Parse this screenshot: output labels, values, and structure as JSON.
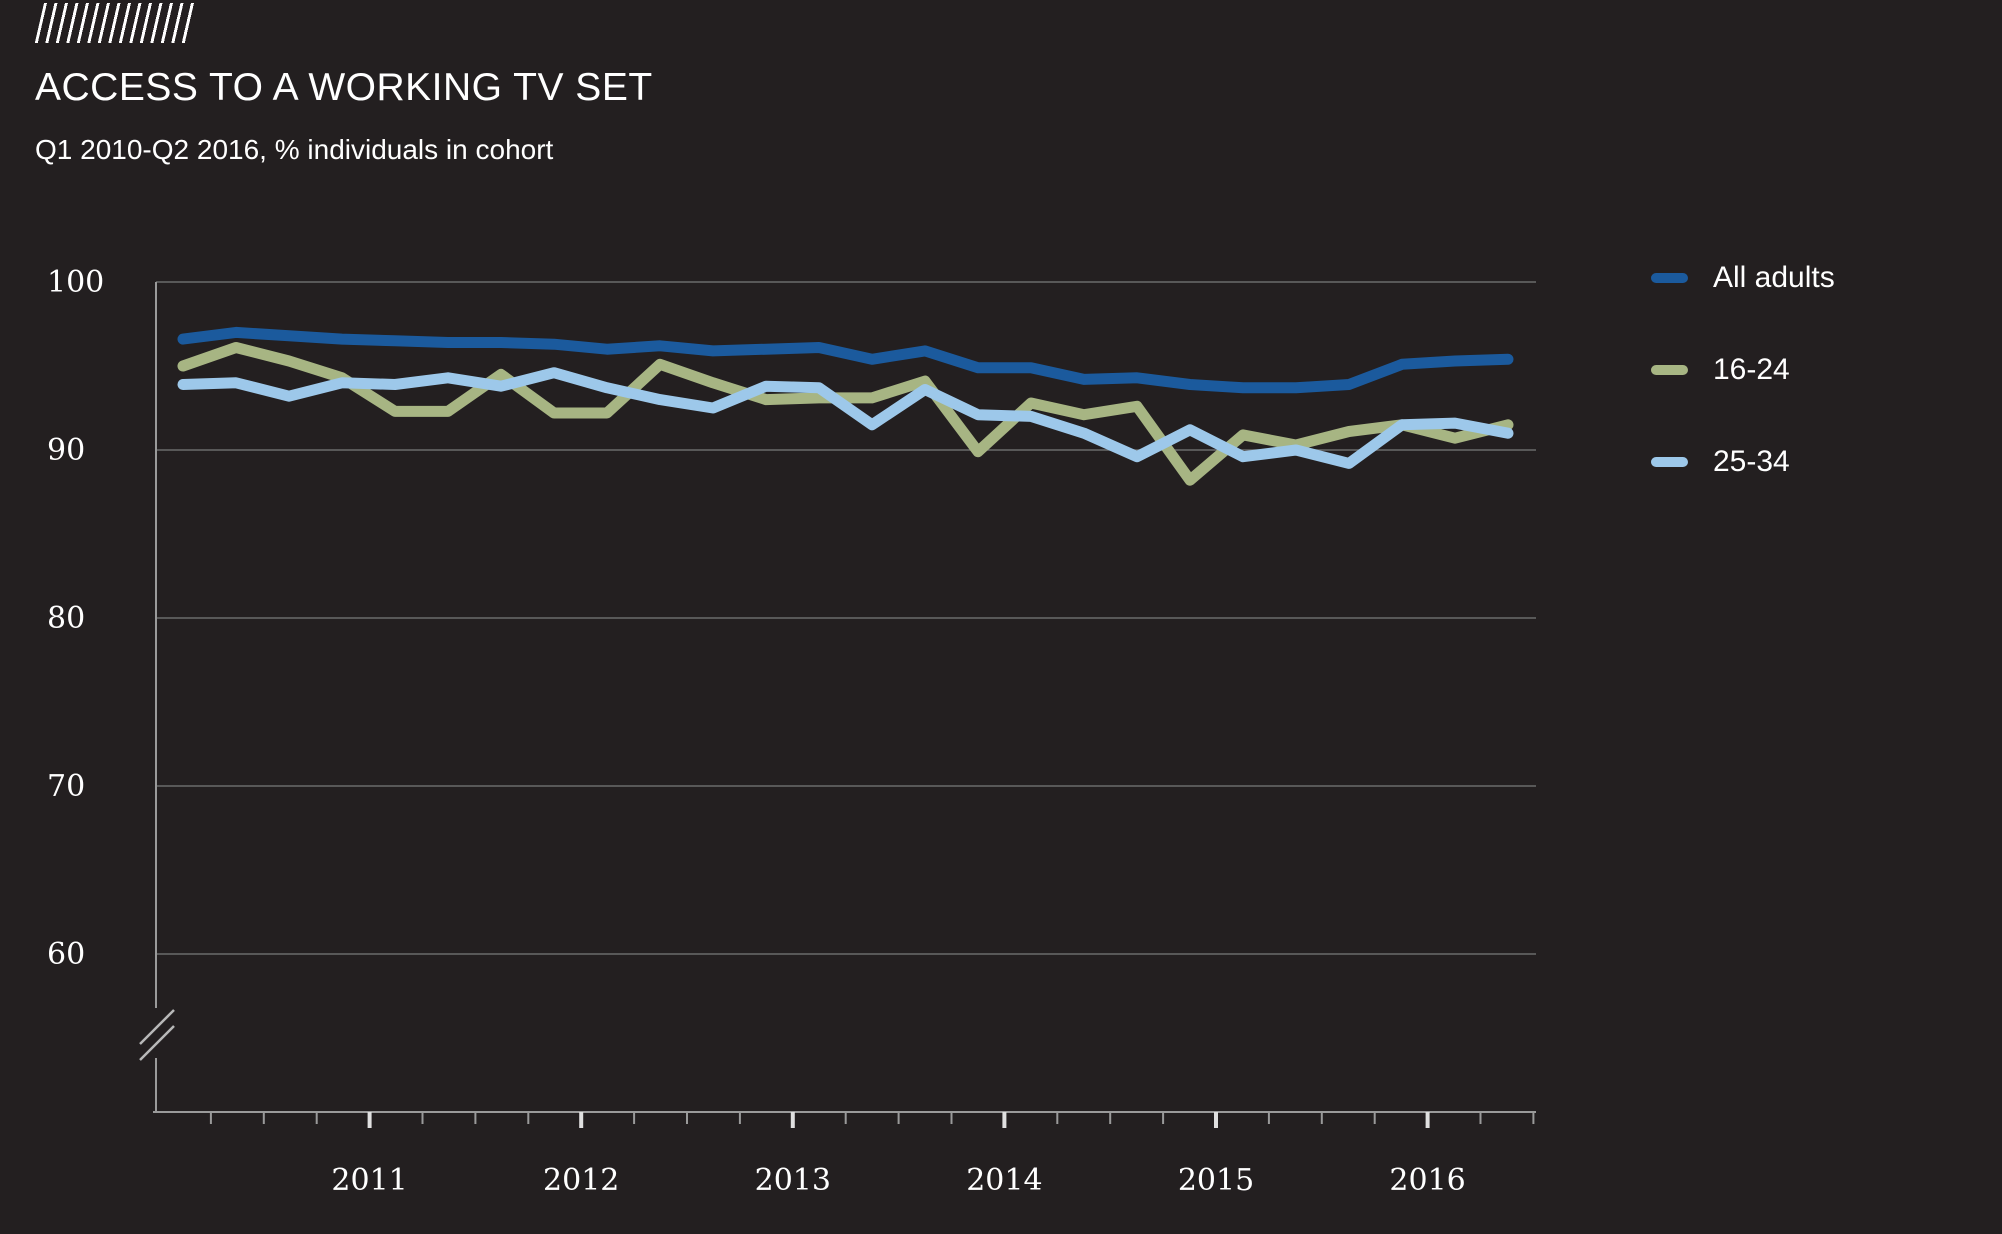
{
  "header": {
    "title": "ACCESS TO A WORKING TV SET",
    "subtitle": "Q1 2010-Q2 2016, % individuals in cohort",
    "logo": "hatch-stripes-logo"
  },
  "colors": {
    "background": "#231f20",
    "text": "#ffffff",
    "gridline": "#6b6b6b",
    "axis": "#9a9a9a",
    "year_tick": "#e0e0e0",
    "series_all_adults": "#1b5a9d",
    "series_16_24": "#a7b583",
    "series_25_34": "#9dc8ea"
  },
  "chart_data": {
    "type": "line",
    "title": "ACCESS TO A WORKING TV SET",
    "subtitle": "Q1 2010-Q2 2016, % individuals in cohort",
    "xlabel": "",
    "ylabel": "% individuals in cohort",
    "ylim": [
      60,
      100
    ],
    "y_ticks": [
      100,
      90,
      80,
      70,
      60
    ],
    "y_axis_break": true,
    "grid": "horizontal",
    "legend_position": "right",
    "x_tick_years": [
      "2011",
      "2012",
      "2013",
      "2014",
      "2015",
      "2016"
    ],
    "categories": [
      "Q1 2010",
      "Q2 2010",
      "Q3 2010",
      "Q4 2010",
      "Q1 2011",
      "Q2 2011",
      "Q3 2011",
      "Q4 2011",
      "Q1 2012",
      "Q2 2012",
      "Q3 2012",
      "Q4 2012",
      "Q1 2013",
      "Q2 2013",
      "Q3 2013",
      "Q4 2013",
      "Q1 2014",
      "Q2 2014",
      "Q3 2014",
      "Q4 2014",
      "Q1 2015",
      "Q2 2015",
      "Q3 2015",
      "Q4 2015",
      "Q1 2016",
      "Q2 2016"
    ],
    "series": [
      {
        "name": "All adults",
        "color": "#1b5a9d",
        "values": [
          96.6,
          97.0,
          96.8,
          96.6,
          96.5,
          96.4,
          96.4,
          96.3,
          96.0,
          96.2,
          95.9,
          96.0,
          96.1,
          95.4,
          95.9,
          94.9,
          94.9,
          94.2,
          94.3,
          93.9,
          93.7,
          93.7,
          93.9,
          95.1,
          95.3,
          95.4
        ]
      },
      {
        "name": "16-24",
        "color": "#a7b583",
        "values": [
          95.0,
          96.1,
          95.3,
          94.3,
          92.3,
          92.3,
          94.5,
          92.2,
          92.2,
          95.1,
          94.0,
          93.0,
          93.1,
          93.1,
          94.1,
          89.9,
          92.8,
          92.1,
          92.6,
          88.2,
          90.9,
          90.3,
          91.1,
          91.5,
          90.7,
          91.5
        ]
      },
      {
        "name": "25-34",
        "color": "#9dc8ea",
        "values": [
          93.9,
          94.0,
          93.2,
          94.0,
          93.9,
          94.3,
          93.8,
          94.6,
          93.7,
          93.0,
          92.5,
          93.8,
          93.7,
          91.5,
          93.6,
          92.1,
          92.0,
          91.0,
          89.6,
          91.2,
          89.6,
          90.0,
          89.2,
          91.5,
          91.6,
          91.0
        ]
      }
    ]
  }
}
